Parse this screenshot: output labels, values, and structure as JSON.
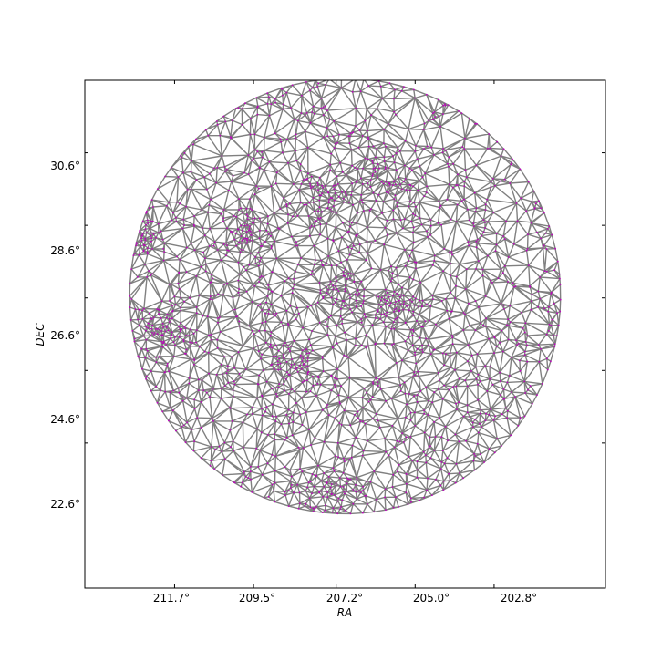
{
  "chart_data": {
    "type": "scatter",
    "subtype": "delaunay-triangulation-of-sky-positions",
    "title": "",
    "xlabel": "RA",
    "ylabel": "DEC",
    "xlim": [
      214.2,
      199.7
    ],
    "ylim": [
      18.6,
      32.6
    ],
    "x_inverted": true,
    "x_ticks": [
      211.7,
      209.5,
      207.2,
      205.0,
      202.8
    ],
    "x_tick_labels": [
      "211.7°",
      "209.5°",
      "207.2°",
      "205.0°",
      "202.8°"
    ],
    "y_ticks": [
      22.6,
      24.6,
      26.6,
      28.6,
      30.6
    ],
    "y_tick_labels": [
      "22.6°",
      "24.6°",
      "26.6°",
      "28.6°",
      "30.6°"
    ],
    "grid": false,
    "region": {
      "shape": "circle",
      "center_ra": 206.95,
      "center_dec": 26.65,
      "radius_deg": 6.0
    },
    "edge_color": "#808080",
    "point_color": "#bf00bf",
    "clusters": [
      {
        "ra": 209.7,
        "dec": 28.3,
        "spread_deg": 0.35
      },
      {
        "ra": 207.0,
        "dec": 26.6,
        "spread_deg": 0.35
      },
      {
        "ra": 205.4,
        "dec": 26.4,
        "spread_deg": 0.3
      },
      {
        "ra": 207.5,
        "dec": 29.4,
        "spread_deg": 0.45
      },
      {
        "ra": 205.8,
        "dec": 29.9,
        "spread_deg": 0.45
      },
      {
        "ra": 211.9,
        "dec": 25.8,
        "spread_deg": 0.45
      },
      {
        "ra": 208.6,
        "dec": 24.8,
        "spread_deg": 0.4
      },
      {
        "ra": 207.4,
        "dec": 21.2,
        "spread_deg": 0.4
      },
      {
        "ra": 212.8,
        "dec": 28.4,
        "spread_deg": 0.35
      },
      {
        "ra": 200.4,
        "dec": 24.5,
        "spread_deg": 0.35
      }
    ]
  }
}
